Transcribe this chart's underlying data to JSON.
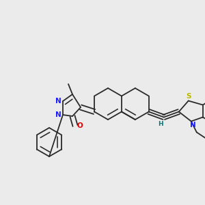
{
  "bg": "#ebebeb",
  "bc": "#2a2a2a",
  "lw": 1.3,
  "dbo": 0.012,
  "fs": 7.5,
  "colors": {
    "N": "#1a1aff",
    "O": "#dd0000",
    "S": "#b8b800",
    "H": "#007878",
    "C": "#2a2a2a"
  },
  "figsize": [
    3.0,
    3.0
  ],
  "dpi": 100
}
